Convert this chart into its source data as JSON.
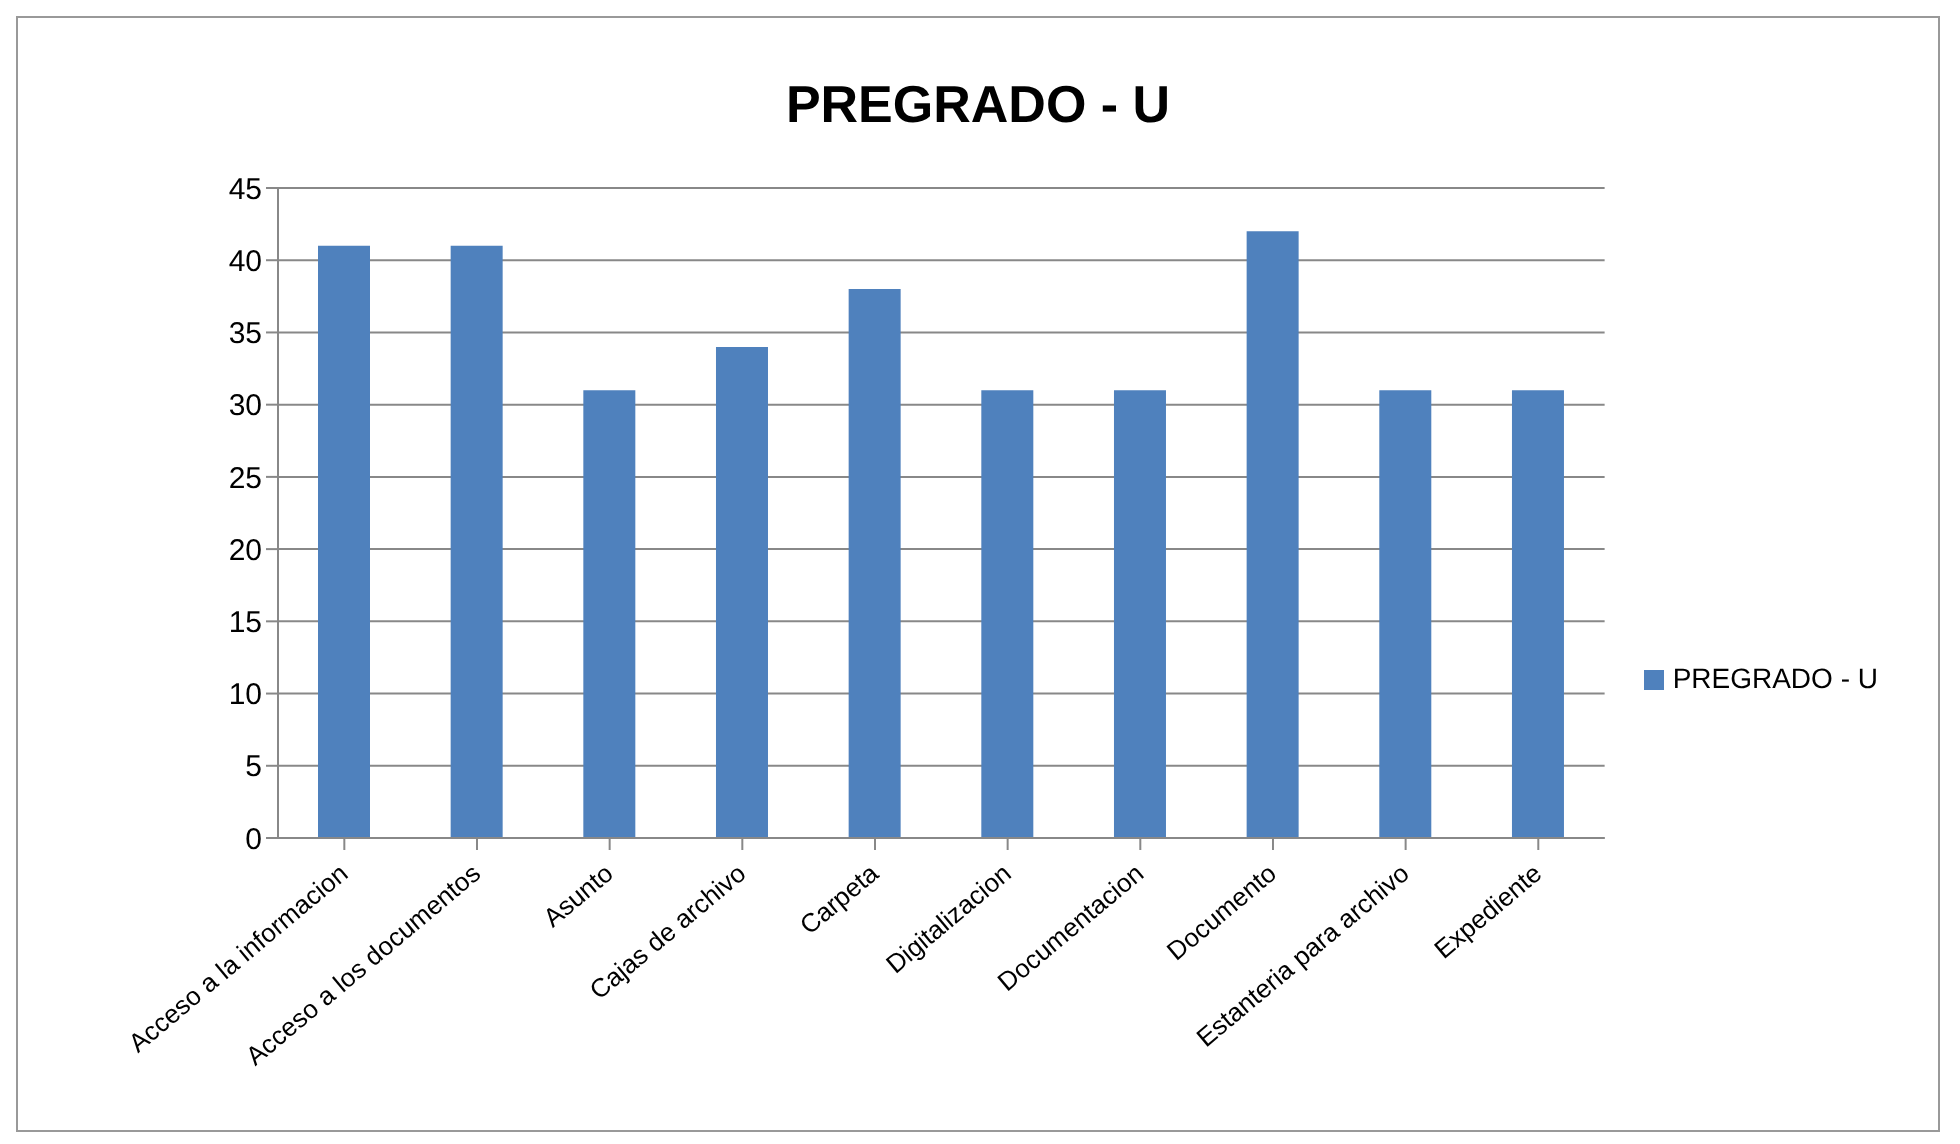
{
  "chart_data": {
    "type": "bar",
    "title": "PREGRADO - U",
    "categories": [
      "Acceso a la informacion",
      "Acceso a los documentos",
      "Asunto",
      "Cajas de archivo",
      "Carpeta",
      "Digitalizacion",
      "Documentacion",
      "Documento",
      "Estanteria para archivo",
      "Expediente"
    ],
    "series": [
      {
        "name": "PREGRADO - U",
        "color": "#4f81bd",
        "values": [
          41,
          41,
          31,
          34,
          38,
          31,
          31,
          42,
          31,
          31
        ]
      }
    ],
    "ylim": [
      0,
      45
    ],
    "yticks": [
      0,
      5,
      10,
      15,
      20,
      25,
      30,
      35,
      40,
      45
    ],
    "grid": "y",
    "legend": "right"
  }
}
